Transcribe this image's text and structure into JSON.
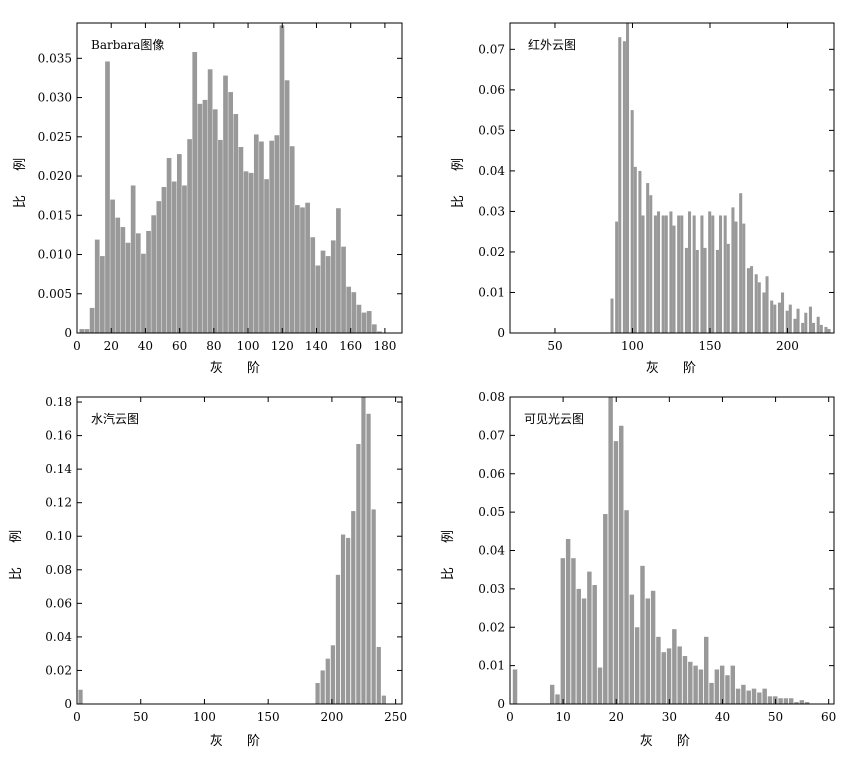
{
  "chart_data": [
    {
      "type": "bar",
      "title": "Barbara图像",
      "xlabel": "灰 阶",
      "ylabel": "比 例",
      "xlim": [
        0,
        190
      ],
      "ylim": [
        0,
        0.0395
      ],
      "xticks": [
        0,
        20,
        40,
        60,
        80,
        100,
        120,
        140,
        160,
        180
      ],
      "yticks": [
        0,
        0.005,
        0.01,
        0.015,
        0.02,
        0.025,
        0.03,
        0.035
      ],
      "ytick_labels": [
        "0",
        "0.005",
        "0.010",
        "0.015",
        "0.020",
        "0.025",
        "0.030",
        "0.035"
      ],
      "bin_width": 3.1,
      "color": "#999999",
      "x": [
        3,
        6,
        9,
        12,
        15,
        18,
        21,
        24,
        27,
        30,
        33,
        36,
        39,
        42,
        45,
        48,
        51,
        54,
        57,
        60,
        63,
        66,
        69,
        72,
        75,
        78,
        81,
        84,
        87,
        90,
        93,
        96,
        99,
        102,
        105,
        108,
        111,
        114,
        117,
        120,
        123,
        126,
        129,
        132,
        135,
        138,
        141,
        144,
        147,
        150,
        153,
        156,
        159,
        162,
        165,
        168,
        171,
        174,
        177
      ],
      "values": [
        0.0005,
        0.0005,
        0.0032,
        0.0119,
        0.0098,
        0.0346,
        0.017,
        0.0147,
        0.0135,
        0.0115,
        0.0188,
        0.0127,
        0.0101,
        0.013,
        0.015,
        0.0168,
        0.0186,
        0.0223,
        0.0193,
        0.0228,
        0.0188,
        0.0247,
        0.0358,
        0.0292,
        0.0297,
        0.0336,
        0.0285,
        0.0246,
        0.0328,
        0.0307,
        0.0279,
        0.0237,
        0.0206,
        0.0204,
        0.0253,
        0.0244,
        0.0196,
        0.0245,
        0.0252,
        0.0392,
        0.0322,
        0.0238,
        0.0163,
        0.016,
        0.0166,
        0.0122,
        0.0086,
        0.0105,
        0.0098,
        0.0118,
        0.0159,
        0.011,
        0.0059,
        0.0052,
        0.0036,
        0.0026,
        0.0028,
        0.0011,
        0.0002
      ]
    },
    {
      "type": "bar",
      "title": "红外云图",
      "xlabel": "灰 阶",
      "ylabel": "比 例",
      "xlim": [
        21,
        230
      ],
      "ylim": [
        0,
        0.0765
      ],
      "xticks": [
        50,
        100,
        150,
        200
      ],
      "yticks": [
        0,
        0.01,
        0.02,
        0.03,
        0.04,
        0.05,
        0.06,
        0.07
      ],
      "ytick_labels": [
        "0",
        "0.01",
        "0.02",
        "0.03",
        "0.04",
        "0.05",
        "0.06",
        "0.07"
      ],
      "bin_width": 2.35,
      "color": "#999999",
      "x": [
        87,
        90,
        92,
        95,
        97,
        100,
        102,
        105,
        107,
        110,
        112,
        115,
        117,
        120,
        122,
        125,
        127,
        130,
        132,
        135,
        137,
        140,
        142,
        145,
        147,
        150,
        152,
        155,
        157,
        160,
        162,
        165,
        167,
        170,
        172,
        175,
        177,
        180,
        182,
        185,
        187,
        190,
        192,
        195,
        197,
        200,
        202,
        205,
        207,
        210,
        212,
        215,
        217,
        220,
        222,
        225,
        227
      ],
      "values": [
        0.0085,
        0.0275,
        0.073,
        0.072,
        0.0765,
        0.055,
        0.041,
        0.04,
        0.029,
        0.037,
        0.034,
        0.029,
        0.03,
        0.029,
        0.029,
        0.03,
        0.0265,
        0.029,
        0.029,
        0.021,
        0.03,
        0.029,
        0.0205,
        0.029,
        0.021,
        0.03,
        0.029,
        0.0205,
        0.029,
        0.029,
        0.022,
        0.031,
        0.0275,
        0.0345,
        0.027,
        0.016,
        0.0165,
        0.0145,
        0.0125,
        0.01,
        0.014,
        0.008,
        0.007,
        0.0075,
        0.01,
        0.0055,
        0.007,
        0.0035,
        0.006,
        0.0025,
        0.005,
        0.0065,
        0.0025,
        0.004,
        0.002,
        0.0015,
        0.001
      ]
    },
    {
      "type": "bar",
      "title": "水汽云图",
      "xlabel": "灰 阶",
      "ylabel": "比 例",
      "xlim": [
        0,
        255
      ],
      "ylim": [
        0,
        0.183
      ],
      "xticks": [
        0,
        50,
        100,
        150,
        200,
        250
      ],
      "yticks": [
        0,
        0.02,
        0.04,
        0.06,
        0.08,
        0.1,
        0.12,
        0.14,
        0.16,
        0.18
      ],
      "ytick_labels": [
        "0",
        "0.02",
        "0.04",
        "0.06",
        "0.08",
        "0.10",
        "0.12",
        "0.14",
        "0.16",
        "0.18"
      ],
      "bin_width": 3.8,
      "color": "#999999",
      "x": [
        3,
        189,
        193,
        197,
        201,
        205,
        209,
        213,
        217,
        221,
        225,
        229,
        233,
        237,
        241
      ],
      "values": [
        0.0085,
        0.0125,
        0.02,
        0.027,
        0.035,
        0.077,
        0.101,
        0.099,
        0.115,
        0.155,
        0.183,
        0.173,
        0.116,
        0.034,
        0.005
      ]
    },
    {
      "type": "bar",
      "title": "可见光云图",
      "xlabel": "灰 阶",
      "ylabel": "比 例",
      "xlim": [
        0,
        61
      ],
      "ylim": [
        0,
        0.08
      ],
      "xticks": [
        0,
        10,
        20,
        30,
        40,
        50,
        60
      ],
      "yticks": [
        0,
        0.01,
        0.02,
        0.03,
        0.04,
        0.05,
        0.06,
        0.07,
        0.08
      ],
      "ytick_labels": [
        "0",
        "0.01",
        "0.02",
        "0.03",
        "0.04",
        "0.05",
        "0.06",
        "0.07",
        "0.08"
      ],
      "bin_width": 0.95,
      "color": "#999999",
      "x": [
        1,
        8,
        9,
        10,
        11,
        12,
        13,
        14,
        15,
        16,
        17,
        18,
        19,
        20,
        21,
        22,
        23,
        24,
        25,
        26,
        27,
        28,
        29,
        30,
        31,
        32,
        33,
        34,
        35,
        36,
        37,
        38,
        39,
        40,
        41,
        42,
        43,
        44,
        45,
        46,
        47,
        48,
        49,
        50,
        51,
        52,
        53,
        54,
        55,
        56
      ],
      "values": [
        0.009,
        0.005,
        0.0025,
        0.038,
        0.043,
        0.038,
        0.03,
        0.0275,
        0.0345,
        0.031,
        0.0095,
        0.0495,
        0.081,
        0.0685,
        0.0725,
        0.0505,
        0.0285,
        0.02,
        0.036,
        0.0275,
        0.0295,
        0.0175,
        0.0135,
        0.0145,
        0.0195,
        0.015,
        0.0125,
        0.011,
        0.01,
        0.009,
        0.0175,
        0.0055,
        0.009,
        0.01,
        0.0075,
        0.01,
        0.004,
        0.005,
        0.0035,
        0.004,
        0.003,
        0.004,
        0.002,
        0.002,
        0.0015,
        0.0015,
        0.0015,
        0.0005,
        0.001,
        0.0005
      ]
    }
  ]
}
